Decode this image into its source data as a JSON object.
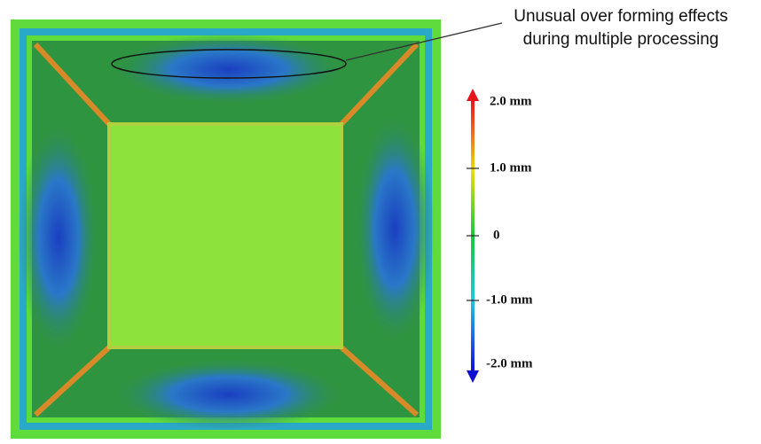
{
  "annotation": {
    "lines": [
      "Unusual over forming effects",
      "during multiple processing"
    ]
  },
  "colorbar": {
    "labels": [
      "2.0 mm",
      "1.0 mm",
      "0",
      "-1.0 mm",
      "-2.0 mm"
    ]
  }
}
